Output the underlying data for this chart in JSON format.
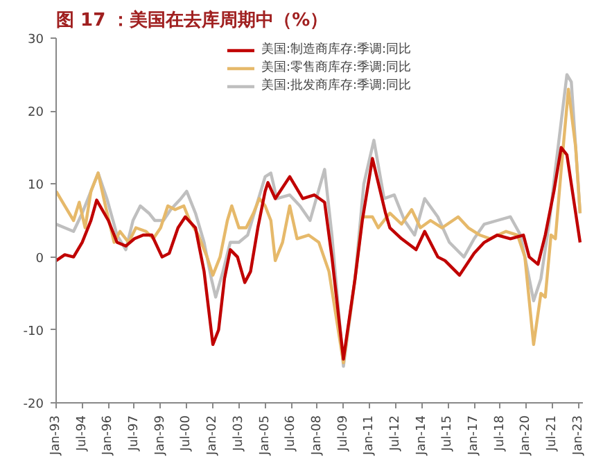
{
  "chart_data": {
    "type": "line",
    "title": "图 17 ：美国在去库周期中（%）",
    "legend": "top",
    "grid": false,
    "line_style": "solid",
    "ylim": [
      -20,
      30
    ],
    "yticks": [
      -20,
      -10,
      0,
      10,
      20,
      30
    ],
    "xlim": [
      "1993-01",
      "2023-04"
    ],
    "xticks": [
      {
        "value": "1993-01",
        "label": "Jan-93"
      },
      {
        "value": "1994-07",
        "label": "Jul-94"
      },
      {
        "value": "1996-01",
        "label": "Jan-96"
      },
      {
        "value": "1997-07",
        "label": "Jul-97"
      },
      {
        "value": "1999-01",
        "label": "Jan-99"
      },
      {
        "value": "2000-07",
        "label": "Jul-00"
      },
      {
        "value": "2002-01",
        "label": "Jan-02"
      },
      {
        "value": "2003-07",
        "label": "Jul-03"
      },
      {
        "value": "2005-01",
        "label": "Jan-05"
      },
      {
        "value": "2006-07",
        "label": "Jul-06"
      },
      {
        "value": "2008-01",
        "label": "Jan-08"
      },
      {
        "value": "2009-07",
        "label": "Jul-09"
      },
      {
        "value": "2011-01",
        "label": "Jan-11"
      },
      {
        "value": "2012-07",
        "label": "Jul-12"
      },
      {
        "value": "2014-01",
        "label": "Jan-14"
      },
      {
        "value": "2015-07",
        "label": "Jul-15"
      },
      {
        "value": "2017-01",
        "label": "Jan-17"
      },
      {
        "value": "2018-07",
        "label": "Jul-18"
      },
      {
        "value": "2020-01",
        "label": "Jan-20"
      },
      {
        "value": "2021-07",
        "label": "Jul-21"
      },
      {
        "value": "2023-01",
        "label": "Jan-23"
      }
    ],
    "series": [
      {
        "name": "美国:制造商库存:季调:同比",
        "color": "#c00000",
        "x": [
          "1993-01",
          "1993-07",
          "1994-01",
          "1994-07",
          "1995-01",
          "1995-05",
          "1996-01",
          "1996-07",
          "1997-01",
          "1997-07",
          "1998-01",
          "1998-07",
          "1999-02",
          "1999-07",
          "2000-01",
          "2000-06",
          "2001-01",
          "2001-07",
          "2002-01",
          "2002-05",
          "2002-09",
          "2003-01",
          "2003-06",
          "2003-11",
          "2004-03",
          "2004-08",
          "2005-01",
          "2005-03",
          "2005-08",
          "2006-06",
          "2007-03",
          "2007-11",
          "2008-06",
          "2008-11",
          "2009-07",
          "2010-03",
          "2010-08",
          "2011-03",
          "2011-12",
          "2012-03",
          "2012-11",
          "2013-09",
          "2014-03",
          "2014-12",
          "2015-05",
          "2016-03",
          "2017-01",
          "2017-08",
          "2018-05",
          "2019-02",
          "2019-11",
          "2020-03",
          "2020-09",
          "2021-02",
          "2021-08",
          "2022-01",
          "2022-05",
          "2022-11",
          "2023-02"
        ],
        "values": [
          -0.5,
          0.3,
          0,
          2,
          5,
          7.8,
          5,
          2,
          1.5,
          2.5,
          3,
          3,
          0,
          0.5,
          4,
          5.5,
          4,
          -2,
          -12,
          -10,
          -3,
          1,
          0,
          -3.5,
          -2,
          4,
          9,
          10.2,
          8,
          11,
          8,
          8.5,
          7.5,
          0,
          -14,
          -3,
          5,
          13.5,
          6,
          4,
          2.5,
          1,
          3.5,
          0,
          -0.5,
          -2.5,
          0.5,
          2,
          3,
          2.5,
          3,
          0,
          -1,
          3,
          9,
          15,
          14,
          6,
          2
        ]
      },
      {
        "name": "美国:零售商库存:季调:同比",
        "color": "#e6b96a",
        "x": [
          "1993-01",
          "1993-07",
          "1994-01",
          "1994-05",
          "1994-09",
          "1995-01",
          "1995-06",
          "1995-11",
          "1996-05",
          "1996-09",
          "1997-03",
          "1997-08",
          "1998-03",
          "1998-08",
          "1999-01",
          "1999-06",
          "1999-11",
          "2000-05",
          "2000-09",
          "2001-03",
          "2001-09",
          "2002-01",
          "2002-06",
          "2002-11",
          "2003-02",
          "2003-07",
          "2003-12",
          "2004-05",
          "2004-09",
          "2005-01",
          "2005-05",
          "2005-08",
          "2006-01",
          "2006-06",
          "2006-11",
          "2007-07",
          "2008-02",
          "2008-09",
          "2009-07",
          "2010-03",
          "2010-08",
          "2011-03",
          "2011-07",
          "2012-03",
          "2012-11",
          "2013-06",
          "2013-12",
          "2014-07",
          "2015-03",
          "2016-02",
          "2016-09",
          "2017-05",
          "2017-12",
          "2018-11",
          "2019-07",
          "2019-12",
          "2020-06",
          "2020-11",
          "2021-02",
          "2021-06",
          "2021-09",
          "2022-01",
          "2022-06",
          "2022-11",
          "2023-02"
        ],
        "values": [
          9,
          7,
          5,
          7.5,
          4,
          9,
          11.5,
          7,
          2,
          3.5,
          2,
          4,
          3.5,
          2.5,
          4,
          7,
          6.5,
          7,
          5,
          3,
          0,
          -2.5,
          0,
          5,
          7,
          4,
          4,
          6,
          8,
          7,
          5,
          -0.5,
          2,
          7,
          2.5,
          3,
          2,
          -2,
          -14.5,
          -3,
          5.5,
          5.5,
          4,
          6,
          4.5,
          6.5,
          4,
          5,
          4,
          5.5,
          4,
          3,
          2.5,
          3.5,
          3,
          0,
          -12,
          -5,
          -5.5,
          3,
          2.5,
          12,
          23,
          15,
          6
        ]
      },
      {
        "name": "美国:批发商库存:季调:同比",
        "color": "#bfbfbf",
        "x": [
          "1993-01",
          "1993-07",
          "1994-01",
          "1994-07",
          "1995-01",
          "1995-06",
          "1995-12",
          "1996-07",
          "1997-01",
          "1997-06",
          "1997-11",
          "1998-05",
          "1998-09",
          "1999-03",
          "1999-08",
          "2000-03",
          "2000-07",
          "2001-01",
          "2001-07",
          "2001-12",
          "2002-03",
          "2002-08",
          "2003-01",
          "2003-07",
          "2004-01",
          "2004-07",
          "2005-01",
          "2005-05",
          "2005-09",
          "2006-06",
          "2007-01",
          "2007-08",
          "2008-06",
          "2008-11",
          "2009-07",
          "2010-03",
          "2010-09",
          "2011-04",
          "2011-11",
          "2012-06",
          "2013-01",
          "2013-08",
          "2014-03",
          "2014-12",
          "2015-08",
          "2016-06",
          "2017-01",
          "2017-08",
          "2018-05",
          "2019-02",
          "2019-09",
          "2020-02",
          "2020-06",
          "2020-11",
          "2021-05",
          "2021-09",
          "2022-05",
          "2022-08",
          "2023-02"
        ],
        "values": [
          4.5,
          4,
          3.5,
          6,
          9,
          11.5,
          8,
          3,
          1,
          5,
          7,
          6,
          5,
          5,
          6.5,
          8,
          9,
          6,
          2,
          -3,
          -5.5,
          -2,
          2,
          2,
          3,
          7,
          11,
          11.5,
          8,
          8.5,
          7,
          5,
          12,
          3,
          -15,
          -3,
          10,
          16,
          8,
          8.5,
          5,
          3,
          8,
          5.5,
          2,
          0,
          2.5,
          4.5,
          5,
          5.5,
          3,
          -2,
          -6,
          -3,
          5,
          12,
          25,
          24,
          6
        ]
      }
    ]
  }
}
